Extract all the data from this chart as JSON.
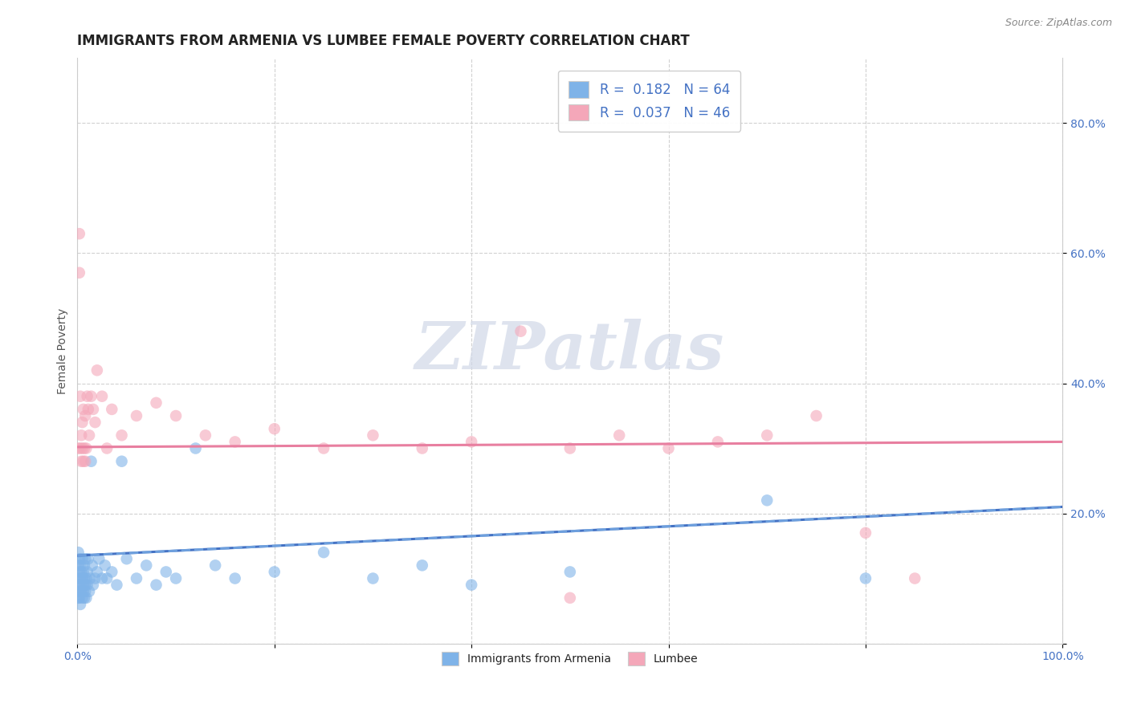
{
  "title": "IMMIGRANTS FROM ARMENIA VS LUMBEE FEMALE POVERTY CORRELATION CHART",
  "source": "Source: ZipAtlas.com",
  "ylabel": "Female Poverty",
  "xlim": [
    0.0,
    1.0
  ],
  "ylim": [
    0.0,
    0.9
  ],
  "x_ticks": [
    0.0,
    0.2,
    0.4,
    0.6,
    0.8,
    1.0
  ],
  "x_tick_labels": [
    "0.0%",
    "",
    "",
    "",
    "",
    "100.0%"
  ],
  "y_ticks": [
    0.0,
    0.2,
    0.4,
    0.6,
    0.8
  ],
  "y_tick_labels_right": [
    "",
    "20.0%",
    "40.0%",
    "60.0%",
    "80.0%"
  ],
  "r_armenia": 0.182,
  "n_armenia": 64,
  "r_lumbee": 0.037,
  "n_lumbee": 46,
  "color_armenia": "#7fb3e8",
  "color_lumbee": "#f4a7b9",
  "blue_scatter_x": [
    0.001,
    0.001,
    0.001,
    0.001,
    0.001,
    0.002,
    0.002,
    0.002,
    0.002,
    0.003,
    0.003,
    0.003,
    0.003,
    0.004,
    0.004,
    0.004,
    0.005,
    0.005,
    0.005,
    0.006,
    0.006,
    0.006,
    0.007,
    0.007,
    0.007,
    0.008,
    0.008,
    0.008,
    0.009,
    0.009,
    0.01,
    0.01,
    0.011,
    0.012,
    0.013,
    0.014,
    0.015,
    0.016,
    0.018,
    0.02,
    0.022,
    0.025,
    0.028,
    0.03,
    0.035,
    0.04,
    0.045,
    0.05,
    0.06,
    0.07,
    0.08,
    0.09,
    0.1,
    0.12,
    0.14,
    0.16,
    0.2,
    0.25,
    0.3,
    0.35,
    0.4,
    0.5,
    0.7,
    0.8
  ],
  "blue_scatter_y": [
    0.1,
    0.08,
    0.12,
    0.07,
    0.14,
    0.09,
    0.11,
    0.13,
    0.07,
    0.1,
    0.08,
    0.12,
    0.06,
    0.09,
    0.11,
    0.08,
    0.13,
    0.07,
    0.1,
    0.09,
    0.11,
    0.08,
    0.12,
    0.07,
    0.1,
    0.09,
    0.13,
    0.08,
    0.1,
    0.07,
    0.11,
    0.09,
    0.13,
    0.08,
    0.1,
    0.28,
    0.12,
    0.09,
    0.1,
    0.11,
    0.13,
    0.1,
    0.12,
    0.1,
    0.11,
    0.09,
    0.28,
    0.13,
    0.1,
    0.12,
    0.09,
    0.11,
    0.1,
    0.3,
    0.12,
    0.1,
    0.11,
    0.14,
    0.1,
    0.12,
    0.09,
    0.11,
    0.22,
    0.1
  ],
  "pink_scatter_x": [
    0.001,
    0.002,
    0.002,
    0.003,
    0.003,
    0.004,
    0.004,
    0.005,
    0.005,
    0.006,
    0.006,
    0.007,
    0.008,
    0.008,
    0.009,
    0.01,
    0.011,
    0.012,
    0.014,
    0.016,
    0.018,
    0.02,
    0.025,
    0.03,
    0.035,
    0.045,
    0.06,
    0.08,
    0.1,
    0.13,
    0.16,
    0.2,
    0.25,
    0.3,
    0.35,
    0.4,
    0.45,
    0.5,
    0.55,
    0.6,
    0.65,
    0.7,
    0.75,
    0.8,
    0.85,
    0.5
  ],
  "pink_scatter_y": [
    0.3,
    0.57,
    0.63,
    0.38,
    0.3,
    0.32,
    0.28,
    0.34,
    0.3,
    0.36,
    0.28,
    0.3,
    0.35,
    0.28,
    0.3,
    0.38,
    0.36,
    0.32,
    0.38,
    0.36,
    0.34,
    0.42,
    0.38,
    0.3,
    0.36,
    0.32,
    0.35,
    0.37,
    0.35,
    0.32,
    0.31,
    0.33,
    0.3,
    0.32,
    0.3,
    0.31,
    0.48,
    0.3,
    0.32,
    0.3,
    0.31,
    0.32,
    0.35,
    0.17,
    0.1,
    0.07
  ],
  "title_fontsize": 12,
  "axis_label_fontsize": 10,
  "tick_fontsize": 10,
  "legend_fontsize": 12,
  "background_color": "#ffffff",
  "grid_color": "#cccccc",
  "watermark_text": "ZIPatlas",
  "watermark_color": "#d0d8e8",
  "watermark_fontsize": 60
}
